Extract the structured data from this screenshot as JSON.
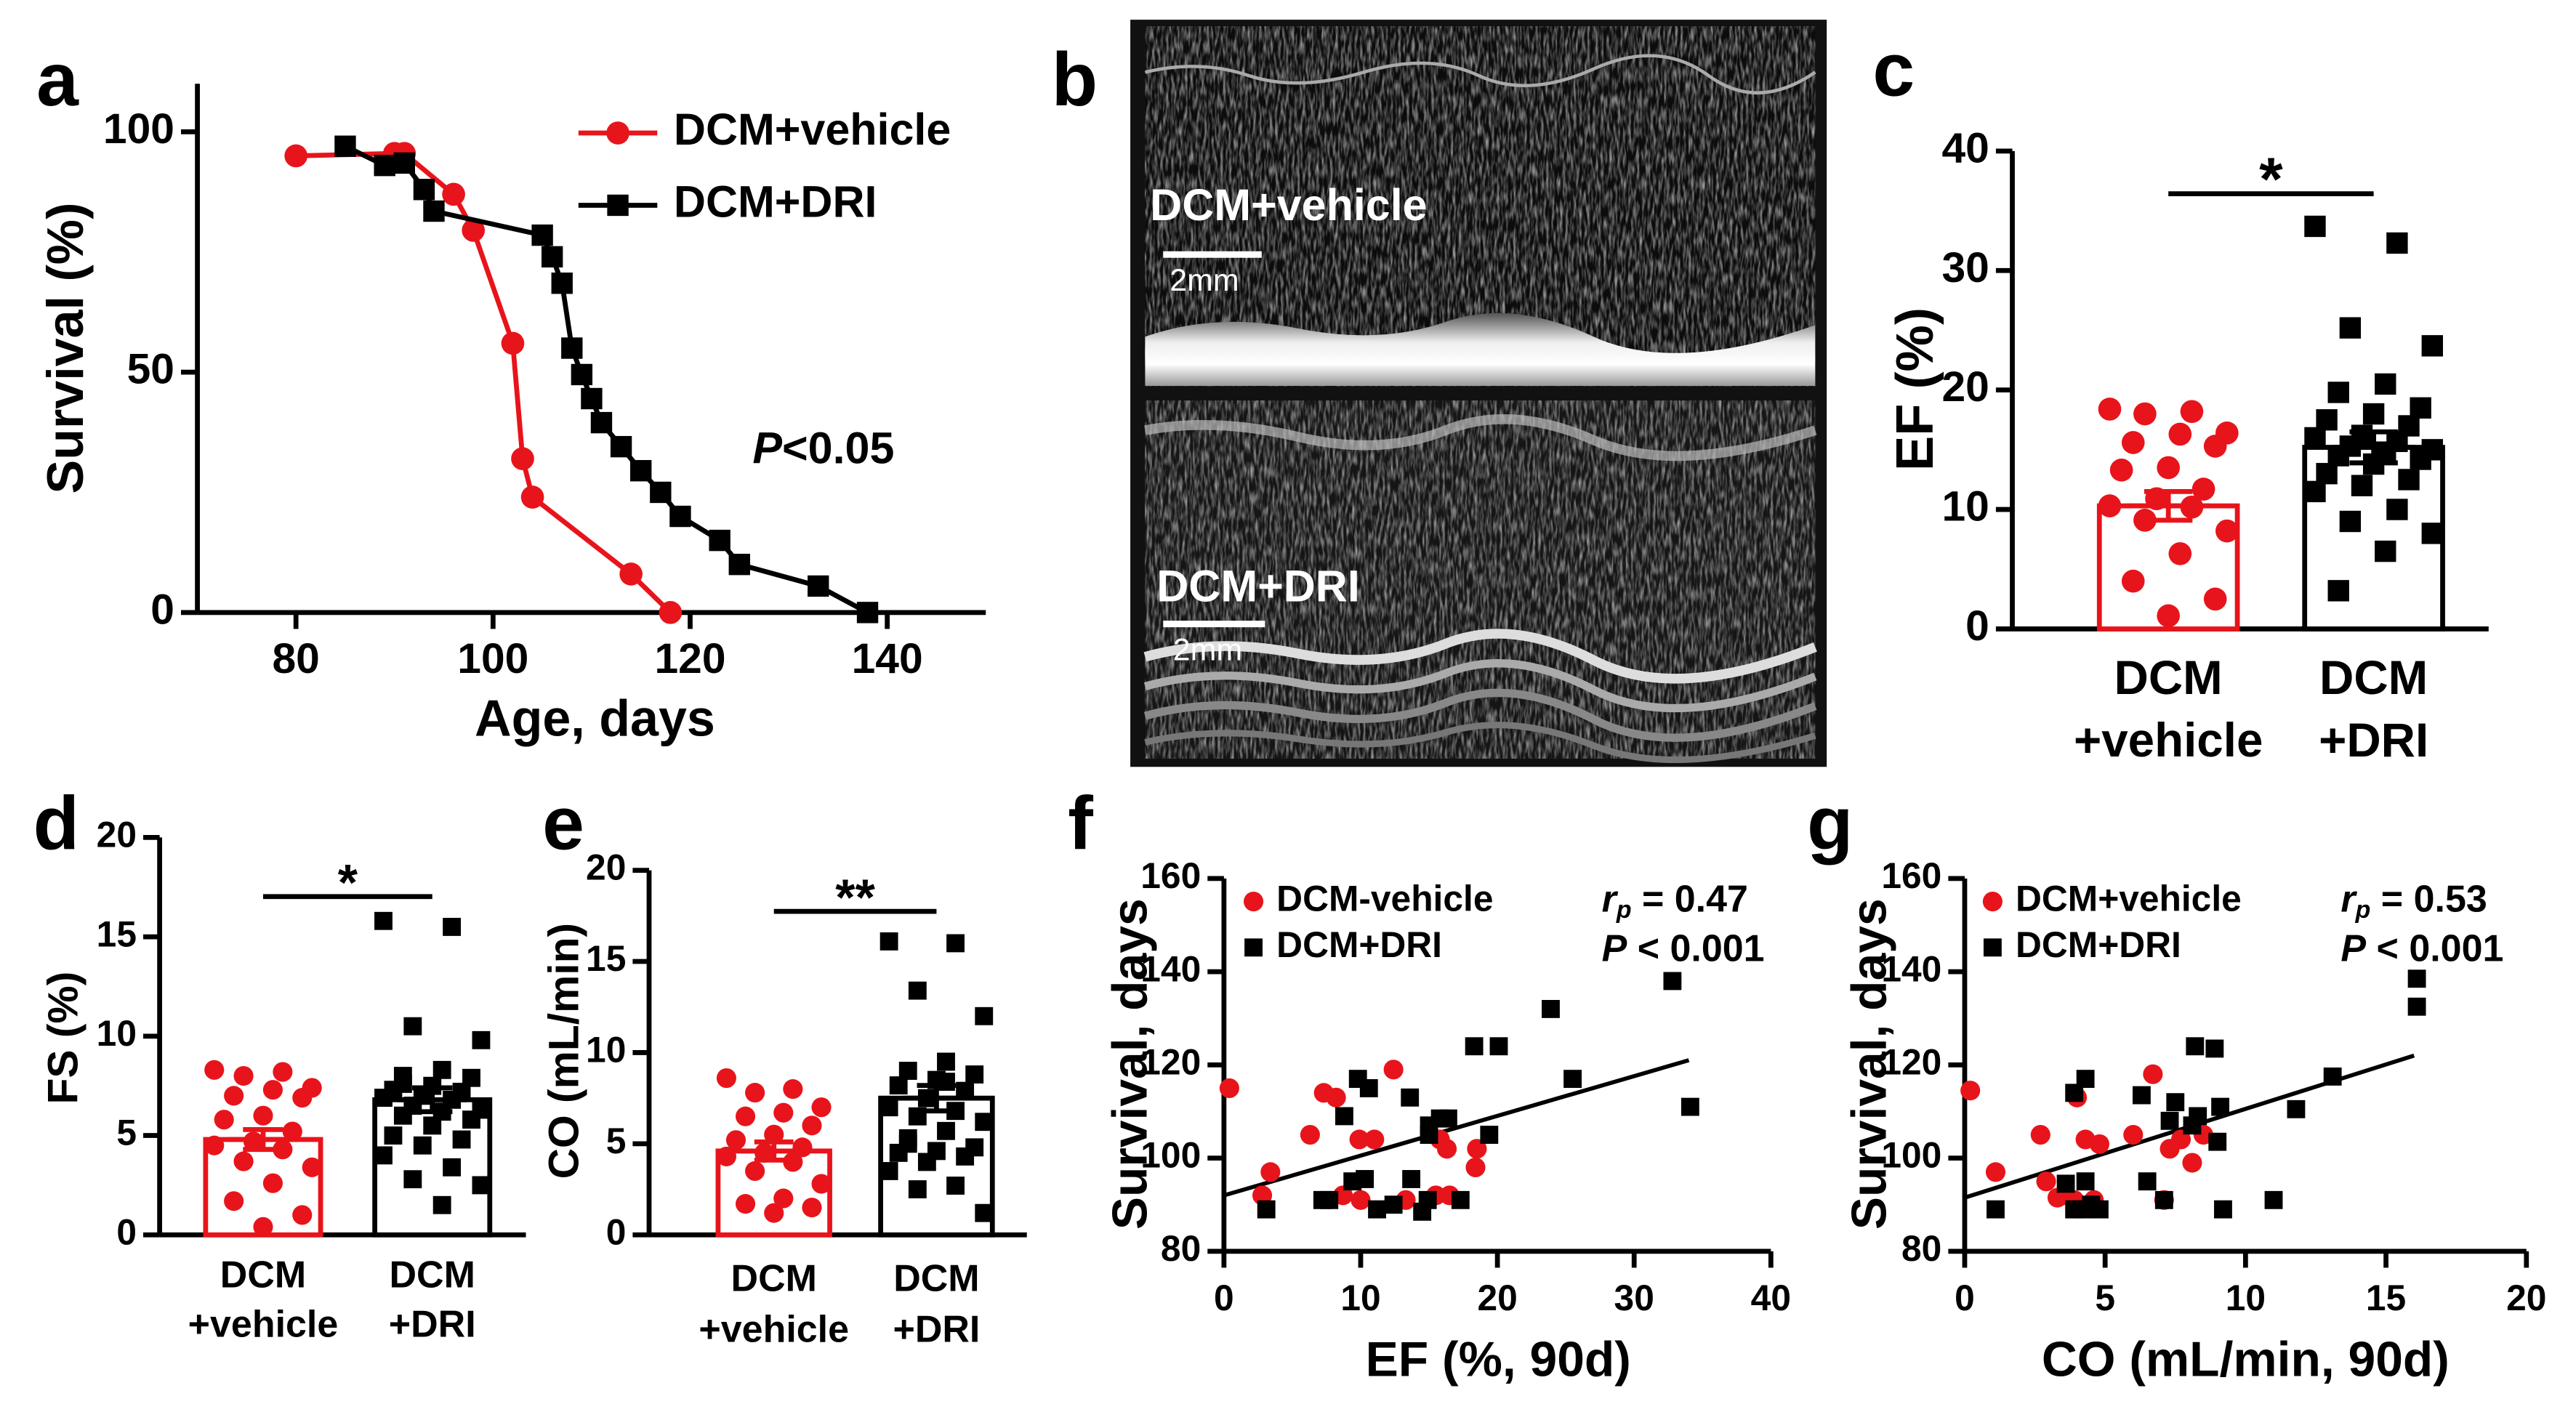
{
  "chart_data": [
    {
      "type": "line",
      "panel": "a",
      "xlabel": "Age, days",
      "ylabel": "Survival (%)",
      "xlim": [
        70,
        150
      ],
      "xticks": [
        80,
        100,
        120,
        140
      ],
      "ylim": [
        0,
        110
      ],
      "yticks": [
        0,
        50,
        100
      ],
      "legend": "upper right",
      "annotation": [
        "P",
        "<0.05"
      ],
      "series": [
        {
          "name": "DCM+vehicle",
          "color": "#e8141b",
          "x": [
            80,
            90,
            91,
            96,
            98,
            102,
            103,
            104,
            114,
            118
          ],
          "values": [
            95,
            95.5,
            95.5,
            87,
            79.5,
            56,
            32,
            24,
            8,
            0
          ]
        },
        {
          "name": "DCM+DRI",
          "color": "#000000",
          "x": [
            85,
            89,
            91,
            93,
            94,
            105,
            106,
            107,
            108,
            109,
            110,
            111,
            113,
            115,
            117,
            119,
            123,
            125,
            133,
            138
          ],
          "values": [
            97,
            93,
            93.5,
            88,
            83.5,
            78.5,
            74,
            68.5,
            55,
            49.5,
            44.5,
            39.5,
            34.5,
            29.5,
            25,
            20,
            15,
            10,
            5.5,
            0
          ]
        }
      ]
    },
    {
      "type": "bar",
      "panel": "c",
      "ylabel": "EF (%)",
      "ylim": [
        0,
        40
      ],
      "yticks": [
        0,
        10,
        20,
        30,
        40
      ],
      "categories": [
        [
          "DCM",
          "+vehicle"
        ],
        [
          "DCM",
          "+DRI"
        ]
      ],
      "colors": [
        "#e8141b",
        "#000000"
      ],
      "values": [
        10.3,
        15.2
      ],
      "errors": [
        1.2,
        1.3
      ],
      "significance": "*",
      "points": [
        [
          18.4,
          18.2,
          18.0,
          16.4,
          16.3,
          15.6,
          15.3,
          13.5,
          13.3,
          11.7,
          10.9,
          10.3,
          10.2,
          9.1,
          8.2,
          6.3,
          4.0,
          2.5,
          1.1
        ],
        [
          33.7,
          32.3,
          25.2,
          23.7,
          20.5,
          19.8,
          18.5,
          18,
          17.5,
          17,
          16.2,
          16,
          15.7,
          15.3,
          15,
          14.8,
          14.5,
          14.2,
          13.8,
          13,
          12.5,
          12,
          11.5,
          10,
          9,
          8,
          6.5,
          3.2
        ]
      ]
    },
    {
      "type": "bar",
      "panel": "d",
      "ylabel": "FS (%)",
      "ylim": [
        0,
        20
      ],
      "yticks": [
        0,
        5,
        10,
        15,
        20
      ],
      "categories": [
        [
          "DCM",
          "+vehicle"
        ],
        [
          "DCM",
          "+DRI"
        ]
      ],
      "colors": [
        "#e8141b",
        "#000000"
      ],
      "values": [
        4.8,
        6.8
      ],
      "errors": [
        0.5,
        0.6
      ],
      "significance": "*",
      "points": [
        [
          8.3,
          8.2,
          8.0,
          7.4,
          7.3,
          7.0,
          6.9,
          6.0,
          5.8,
          5.2,
          4.7,
          4.5,
          4.3,
          3.7,
          3.4,
          2.6,
          1.7,
          1.0,
          0.4
        ],
        [
          15.8,
          15.5,
          10.5,
          9.8,
          8.3,
          8,
          7.9,
          7.5,
          7.3,
          7.2,
          7,
          6.9,
          6.8,
          6.5,
          6.3,
          6.2,
          6,
          5.8,
          5.5,
          5,
          4.8,
          4.5,
          4,
          3.4,
          2.8,
          2.5,
          1.5,
          7.6
        ]
      ]
    },
    {
      "type": "bar",
      "panel": "e",
      "ylabel": "CO (mL/min)",
      "ylim": [
        0,
        20
      ],
      "yticks": [
        0,
        5,
        10,
        15,
        20
      ],
      "categories": [
        [
          "DCM",
          "+vehicle"
        ],
        [
          "DCM",
          "+DRI"
        ]
      ],
      "colors": [
        "#e8141b",
        "#000000"
      ],
      "values": [
        4.6,
        7.5
      ],
      "errors": [
        0.5,
        0.7
      ],
      "significance": "**",
      "points": [
        [
          8.6,
          8.0,
          7.8,
          7.0,
          6.7,
          6.5,
          6.0,
          5.5,
          5.2,
          4.8,
          4.5,
          4.3,
          4.0,
          3.5,
          2.8,
          2.0,
          1.7,
          1.5,
          1.2
        ],
        [
          16.1,
          16.0,
          13.4,
          12.0,
          9.5,
          9.0,
          8.8,
          8.5,
          8.2,
          7.9,
          7.5,
          7.0,
          6.8,
          6.5,
          6.2,
          5.7,
          5.0,
          4.8,
          4.6,
          4.5,
          4.3,
          4.0,
          3.5,
          2.7,
          2.5,
          1.2,
          8.4,
          5.3
        ]
      ]
    },
    {
      "type": "scatter",
      "panel": "f",
      "xlabel": "EF (%, 90d)",
      "ylabel": "Survival, days",
      "xlim": [
        0,
        40
      ],
      "xticks": [
        0,
        10,
        20,
        30,
        40
      ],
      "ylim": [
        80,
        160
      ],
      "yticks": [
        80,
        100,
        120,
        140,
        160
      ],
      "legend": "upper left",
      "stats": [
        [
          "r",
          "p",
          " = 0.47"
        ],
        [
          "P",
          " < 0.001"
        ]
      ],
      "fit": {
        "x": [
          0,
          34
        ],
        "y": [
          92,
          121
        ]
      },
      "series": [
        {
          "name": "DCM-vehicle",
          "color": "#e8141b",
          "x": [
            0.4,
            3.4,
            2.8,
            6.3,
            7.3,
            8.2,
            8.7,
            10,
            9.9,
            11,
            12.4,
            13.3,
            15.8,
            16.3,
            16.5,
            18.4,
            18.5,
            15.5
          ],
          "values": [
            115,
            97,
            92,
            105,
            114,
            113,
            92,
            91,
            104,
            104,
            119,
            91,
            104,
            102,
            92,
            98,
            102,
            92
          ]
        },
        {
          "name": "DCM+DRI",
          "color": "#000000",
          "x": [
            3.1,
            8.8,
            9.8,
            10.6,
            7.7,
            9.4,
            10.3,
            11.2,
            12.4,
            13.6,
            13.7,
            14.5,
            14.9,
            15,
            15.8,
            16.4,
            15,
            17.3,
            18.3,
            19.4,
            20.1,
            23.9,
            25.5,
            32.8,
            34.1,
            7.2
          ],
          "values": [
            89,
            109,
            117,
            115,
            91,
            95,
            95.5,
            89,
            90,
            113,
            95.5,
            88.5,
            91,
            107,
            108.5,
            108.5,
            105,
            91,
            124,
            105,
            124,
            132,
            117,
            138,
            111,
            91
          ]
        }
      ]
    },
    {
      "type": "scatter",
      "panel": "g",
      "xlabel": "CO (mL/min, 90d)",
      "ylabel": "Survival, days",
      "xlim": [
        0,
        20
      ],
      "xticks": [
        0,
        5,
        10,
        15,
        20
      ],
      "ylim": [
        80,
        160
      ],
      "yticks": [
        80,
        100,
        120,
        140,
        160
      ],
      "legend": "upper left",
      "stats": [
        [
          "r",
          "p",
          " = 0.53"
        ],
        [
          "P",
          " < 0.001"
        ]
      ],
      "fit": {
        "x": [
          0,
          16
        ],
        "y": [
          91.5,
          122
        ]
      },
      "series": [
        {
          "name": "DCM+vehicle",
          "color": "#e8141b",
          "x": [
            0.2,
            1.1,
            2.7,
            3.5,
            3.9,
            4.0,
            4.3,
            4.6,
            4.8,
            6.0,
            6.7,
            7.1,
            7.7,
            8.1,
            8.5,
            7.3,
            3.3,
            2.9
          ],
          "values": [
            114.5,
            97,
            105,
            92,
            91,
            113,
            104,
            91,
            103,
            105,
            118,
            91,
            104,
            99,
            105,
            102,
            91.5,
            95
          ]
        },
        {
          "name": "DCM+DRI",
          "color": "#000000",
          "x": [
            1.1,
            3.9,
            4.3,
            3.6,
            4.3,
            3.9,
            4.2,
            4.5,
            4.8,
            6.3,
            6.5,
            7.1,
            7.3,
            7.5,
            8.1,
            8.3,
            8.2,
            8.9,
            9.2,
            9.1,
            11.0,
            11.8,
            13.1,
            16.1,
            16.1,
            9.0
          ],
          "values": [
            89,
            114,
            117,
            94.5,
            95,
            89,
            89,
            90,
            89,
            113.5,
            95,
            91,
            108,
            112,
            107,
            109,
            124,
            123.5,
            89,
            111,
            91,
            110.5,
            117.5,
            138.5,
            132.5,
            103.5
          ]
        }
      ]
    }
  ],
  "image_panel": {
    "panel": "b",
    "top_label": "DCM+vehicle",
    "top_scale": "2mm",
    "bottom_label": "DCM+DRI",
    "bottom_scale": "2mm"
  }
}
